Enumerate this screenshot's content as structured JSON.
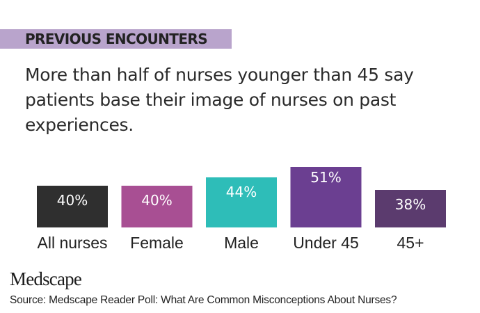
{
  "banner": {
    "label": "PREVIOUS ENCOUNTERS",
    "color": "#b9a4cc"
  },
  "headline": "More than half of nurses younger than 45 say patients base their image of nurses on past experiences.",
  "chart_data": {
    "type": "bar",
    "categories": [
      "All nurses",
      "Female",
      "Male",
      "Under 45",
      "45+"
    ],
    "values": [
      40,
      40,
      44,
      51,
      38
    ],
    "value_labels": [
      "40%",
      "40%",
      "44%",
      "51%",
      "38%"
    ],
    "colors": [
      "#2f2f2f",
      "#a84f93",
      "#2ebdb8",
      "#6b3f91",
      "#5b3b6e"
    ],
    "unit": "%",
    "title": "",
    "xlabel": "",
    "ylabel": "",
    "grid": false,
    "legend": "none"
  },
  "logo": {
    "text": "Medscape"
  },
  "source": "Source: Medscape Reader Poll: What Are Common Misconceptions About Nurses?"
}
